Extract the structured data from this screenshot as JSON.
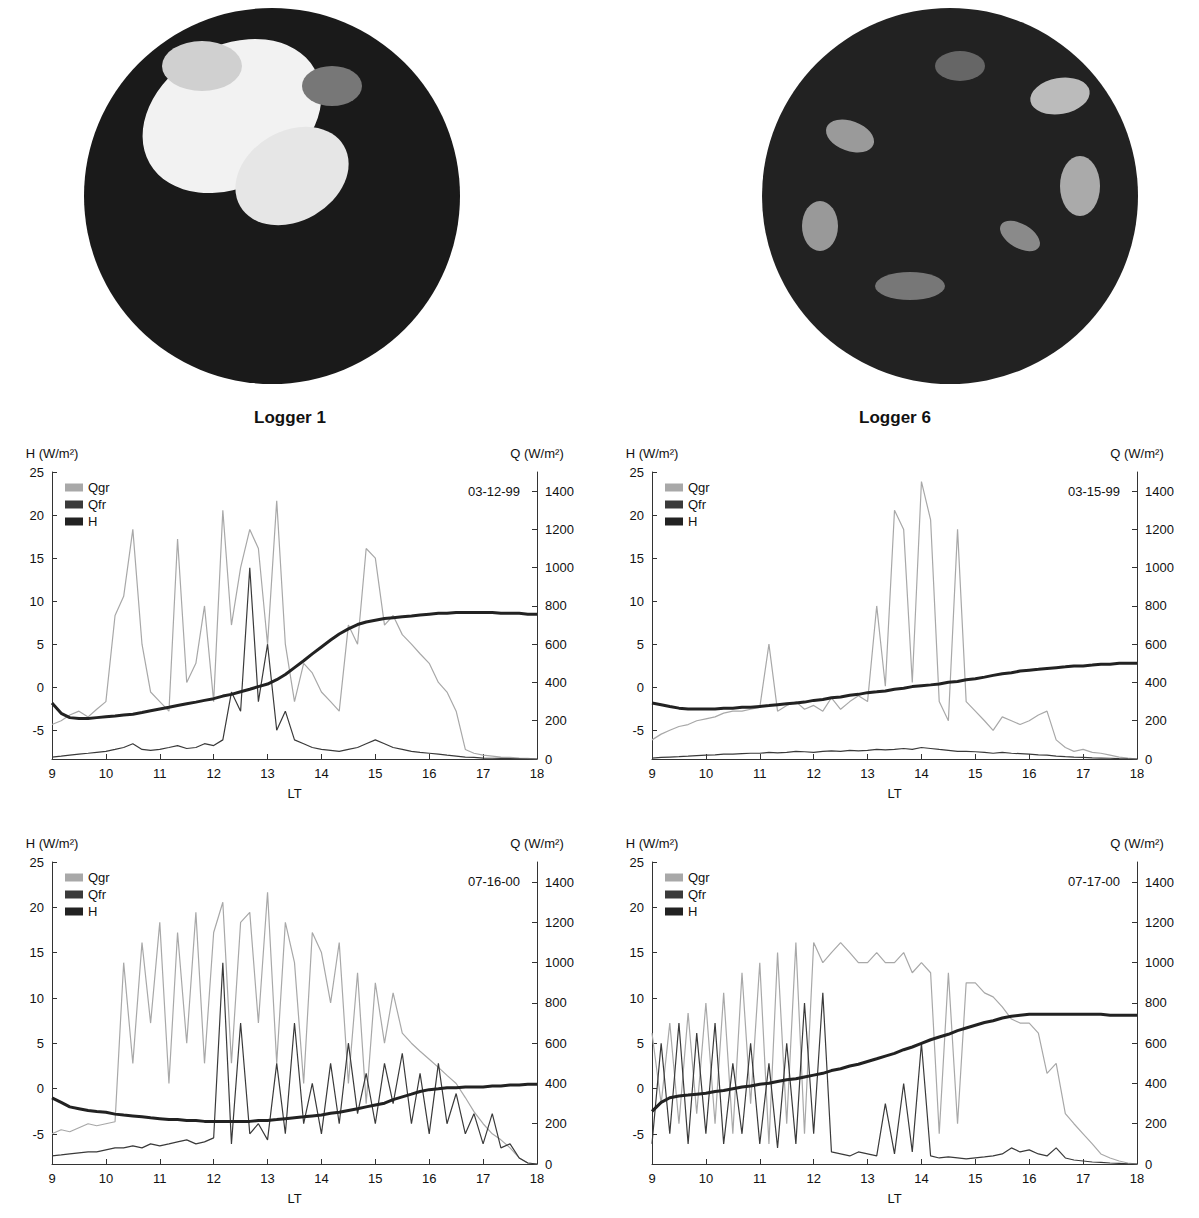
{
  "images": [
    {
      "caption": "Logger 1"
    },
    {
      "caption": "Logger 6"
    }
  ],
  "chart_data": [
    {
      "type": "line",
      "title": "03-12-99",
      "x_label": "LT",
      "y_label": "H (W/m²)",
      "y2_label": "Q (W/m²)",
      "legend": "upper left",
      "grid": false,
      "xlim": [
        9,
        18
      ],
      "xticks": [
        9,
        10,
        11,
        12,
        13,
        14,
        15,
        16,
        17,
        18
      ],
      "ylim": [
        -8.3,
        25
      ],
      "yticks": [
        -5,
        0,
        5,
        10,
        15,
        20,
        25
      ],
      "y2lim": [
        0,
        1500
      ],
      "y2ticks": [
        0,
        200,
        400,
        600,
        800,
        1000,
        1200,
        1400
      ],
      "x": [
        9,
        9.17,
        9.33,
        9.5,
        9.67,
        9.83,
        10,
        10.17,
        10.33,
        10.5,
        10.67,
        10.83,
        11,
        11.17,
        11.33,
        11.5,
        11.67,
        11.83,
        12,
        12.17,
        12.33,
        12.5,
        12.67,
        12.83,
        13,
        13.17,
        13.33,
        13.5,
        13.67,
        13.83,
        14,
        14.17,
        14.33,
        14.5,
        14.67,
        14.83,
        15,
        15.17,
        15.33,
        15.5,
        15.67,
        15.83,
        16,
        16.17,
        16.33,
        16.5,
        16.67,
        16.83,
        17,
        17.17,
        17.33,
        17.5,
        17.67,
        17.83,
        18
      ],
      "series": [
        {
          "name": "Qgr",
          "color": "#a8a8a8",
          "axis": "y2",
          "values": [
            180,
            200,
            230,
            250,
            220,
            260,
            300,
            750,
            850,
            1200,
            600,
            350,
            300,
            250,
            1150,
            400,
            500,
            800,
            300,
            1300,
            700,
            1000,
            1200,
            1100,
            600,
            1350,
            600,
            300,
            500,
            450,
            350,
            300,
            250,
            700,
            600,
            1100,
            1050,
            700,
            750,
            650,
            600,
            550,
            500,
            400,
            350,
            250,
            50,
            30,
            20,
            15,
            10,
            8,
            5,
            3,
            0
          ]
        },
        {
          "name": "Qfr",
          "color": "#3a3a3a",
          "axis": "y2",
          "values": [
            10,
            15,
            20,
            25,
            30,
            35,
            40,
            50,
            60,
            80,
            50,
            45,
            50,
            60,
            70,
            55,
            60,
            80,
            70,
            100,
            350,
            250,
            1000,
            300,
            600,
            150,
            250,
            100,
            80,
            60,
            50,
            45,
            40,
            50,
            60,
            80,
            100,
            80,
            60,
            50,
            40,
            35,
            30,
            25,
            20,
            15,
            10,
            8,
            5,
            4,
            3,
            2,
            1,
            0,
            0
          ]
        },
        {
          "name": "H",
          "color": "#222222",
          "axis": "y",
          "values": [
            -1.8,
            -3,
            -3.5,
            -3.6,
            -3.6,
            -3.5,
            -3.4,
            -3.3,
            -3.2,
            -3.1,
            -2.9,
            -2.7,
            -2.5,
            -2.3,
            -2.1,
            -1.9,
            -1.7,
            -1.5,
            -1.3,
            -1.0,
            -0.8,
            -0.5,
            -0.2,
            0.1,
            0.4,
            0.9,
            1.5,
            2.3,
            3.1,
            3.9,
            4.7,
            5.5,
            6.2,
            6.8,
            7.3,
            7.6,
            7.8,
            8.0,
            8.1,
            8.2,
            8.3,
            8.4,
            8.5,
            8.6,
            8.6,
            8.7,
            8.7,
            8.7,
            8.7,
            8.7,
            8.6,
            8.6,
            8.6,
            8.5,
            8.5
          ]
        }
      ]
    },
    {
      "type": "line",
      "title": "03-15-99",
      "x_label": "LT",
      "y_label": "H (W/m²)",
      "y2_label": "Q (W/m²)",
      "legend": "upper left",
      "grid": false,
      "xlim": [
        9,
        18
      ],
      "xticks": [
        9,
        10,
        11,
        12,
        13,
        14,
        15,
        16,
        17,
        18
      ],
      "ylim": [
        -8.3,
        25
      ],
      "yticks": [
        -5,
        0,
        5,
        10,
        15,
        20,
        25
      ],
      "y2lim": [
        0,
        1500
      ],
      "y2ticks": [
        0,
        200,
        400,
        600,
        800,
        1000,
        1200,
        1400
      ],
      "x": [
        9,
        9.17,
        9.33,
        9.5,
        9.67,
        9.83,
        10,
        10.17,
        10.33,
        10.5,
        10.67,
        10.83,
        11,
        11.17,
        11.33,
        11.5,
        11.67,
        11.83,
        12,
        12.17,
        12.33,
        12.5,
        12.67,
        12.83,
        13,
        13.17,
        13.33,
        13.5,
        13.67,
        13.83,
        14,
        14.17,
        14.33,
        14.5,
        14.67,
        14.83,
        15,
        15.17,
        15.33,
        15.5,
        15.67,
        15.83,
        16,
        16.17,
        16.33,
        16.5,
        16.67,
        16.83,
        17,
        17.17,
        17.33,
        17.5,
        17.67,
        17.83,
        18
      ],
      "series": [
        {
          "name": "Qgr",
          "color": "#a8a8a8",
          "axis": "y2",
          "values": [
            100,
            130,
            150,
            170,
            180,
            200,
            210,
            220,
            240,
            250,
            250,
            260,
            270,
            600,
            250,
            280,
            300,
            260,
            280,
            250,
            320,
            260,
            300,
            330,
            300,
            800,
            380,
            1300,
            1200,
            400,
            1450,
            1250,
            300,
            200,
            1200,
            300,
            250,
            200,
            150,
            220,
            200,
            180,
            200,
            230,
            250,
            100,
            60,
            40,
            50,
            35,
            30,
            20,
            10,
            5,
            0
          ]
        },
        {
          "name": "Qfr",
          "color": "#3a3a3a",
          "axis": "y2",
          "values": [
            5,
            8,
            10,
            12,
            15,
            18,
            20,
            22,
            25,
            25,
            28,
            30,
            30,
            35,
            32,
            35,
            40,
            38,
            35,
            40,
            42,
            40,
            45,
            42,
            45,
            50,
            48,
            50,
            55,
            50,
            60,
            55,
            50,
            45,
            40,
            40,
            38,
            35,
            30,
            35,
            30,
            28,
            25,
            22,
            20,
            15,
            12,
            10,
            8,
            6,
            5,
            4,
            2,
            1,
            0
          ]
        },
        {
          "name": "H",
          "color": "#222222",
          "axis": "y",
          "values": [
            -1.8,
            -2.0,
            -2.2,
            -2.4,
            -2.5,
            -2.5,
            -2.5,
            -2.5,
            -2.4,
            -2.4,
            -2.3,
            -2.3,
            -2.2,
            -2.1,
            -2.0,
            -1.9,
            -1.8,
            -1.7,
            -1.5,
            -1.4,
            -1.2,
            -1.1,
            -0.9,
            -0.8,
            -0.6,
            -0.5,
            -0.4,
            -0.2,
            -0.1,
            0.1,
            0.2,
            0.3,
            0.4,
            0.6,
            0.7,
            0.9,
            1.0,
            1.2,
            1.4,
            1.6,
            1.7,
            1.9,
            2.0,
            2.1,
            2.2,
            2.3,
            2.4,
            2.5,
            2.5,
            2.6,
            2.7,
            2.7,
            2.8,
            2.8,
            2.8
          ]
        }
      ]
    },
    {
      "type": "line",
      "title": "07-16-00",
      "x_label": "LT",
      "y_label": "H (W/m²)",
      "y2_label": "Q (W/m²)",
      "legend": "upper left",
      "grid": false,
      "xlim": [
        9,
        18
      ],
      "xticks": [
        9,
        10,
        11,
        12,
        13,
        14,
        15,
        16,
        17,
        18
      ],
      "ylim": [
        -8.3,
        25
      ],
      "yticks": [
        -5,
        0,
        5,
        10,
        15,
        20,
        25
      ],
      "y2lim": [
        0,
        1500
      ],
      "y2ticks": [
        0,
        200,
        400,
        600,
        800,
        1000,
        1200,
        1400
      ],
      "x": [
        9,
        9.17,
        9.33,
        9.5,
        9.67,
        9.83,
        10,
        10.17,
        10.33,
        10.5,
        10.67,
        10.83,
        11,
        11.17,
        11.33,
        11.5,
        11.67,
        11.83,
        12,
        12.17,
        12.33,
        12.5,
        12.67,
        12.83,
        13,
        13.17,
        13.33,
        13.5,
        13.67,
        13.83,
        14,
        14.17,
        14.33,
        14.5,
        14.67,
        14.83,
        15,
        15.17,
        15.33,
        15.5,
        15.67,
        15.83,
        16,
        16.17,
        16.33,
        16.5,
        16.67,
        16.83,
        17,
        17.17,
        17.33,
        17.5,
        17.67,
        17.83,
        18
      ],
      "series": [
        {
          "name": "Qgr",
          "color": "#a8a8a8",
          "axis": "y2",
          "values": [
            150,
            170,
            160,
            180,
            200,
            190,
            200,
            210,
            1000,
            500,
            1100,
            700,
            1200,
            400,
            1150,
            600,
            1250,
            500,
            1150,
            1300,
            500,
            1200,
            1250,
            700,
            1350,
            500,
            1200,
            1000,
            400,
            1150,
            1050,
            800,
            1100,
            400,
            950,
            300,
            900,
            600,
            850,
            650,
            600,
            560,
            520,
            480,
            440,
            400,
            330,
            260,
            200,
            150,
            120,
            80,
            30,
            5,
            0
          ]
        },
        {
          "name": "Qfr",
          "color": "#3a3a3a",
          "axis": "y2",
          "values": [
            40,
            45,
            50,
            55,
            60,
            60,
            70,
            80,
            80,
            90,
            80,
            100,
            90,
            100,
            110,
            120,
            100,
            110,
            130,
            1000,
            100,
            700,
            150,
            200,
            120,
            500,
            150,
            700,
            200,
            400,
            150,
            500,
            200,
            600,
            250,
            450,
            200,
            500,
            300,
            550,
            200,
            450,
            150,
            500,
            200,
            350,
            150,
            250,
            100,
            250,
            80,
            100,
            30,
            5,
            0
          ]
        },
        {
          "name": "H",
          "color": "#222222",
          "axis": "y",
          "values": [
            -1.0,
            -1.5,
            -2.0,
            -2.2,
            -2.4,
            -2.5,
            -2.6,
            -2.8,
            -2.9,
            -3.0,
            -3.1,
            -3.2,
            -3.3,
            -3.4,
            -3.4,
            -3.5,
            -3.5,
            -3.6,
            -3.6,
            -3.6,
            -3.6,
            -3.6,
            -3.6,
            -3.5,
            -3.5,
            -3.4,
            -3.3,
            -3.2,
            -3.1,
            -3.0,
            -2.9,
            -2.7,
            -2.6,
            -2.4,
            -2.2,
            -2.0,
            -1.8,
            -1.6,
            -1.2,
            -0.9,
            -0.6,
            -0.3,
            -0.1,
            0.0,
            0.1,
            0.1,
            0.2,
            0.2,
            0.2,
            0.3,
            0.3,
            0.4,
            0.4,
            0.5,
            0.5
          ]
        }
      ]
    },
    {
      "type": "line",
      "title": "07-17-00",
      "x_label": "LT",
      "y_label": "H (W/m²)",
      "y2_label": "Q (W/m²)",
      "legend": "upper left",
      "grid": false,
      "xlim": [
        9,
        18
      ],
      "xticks": [
        9,
        10,
        11,
        12,
        13,
        14,
        15,
        16,
        17,
        18
      ],
      "ylim": [
        -8.3,
        25
      ],
      "yticks": [
        -5,
        0,
        5,
        10,
        15,
        20,
        25
      ],
      "y2lim": [
        0,
        1500
      ],
      "y2ticks": [
        0,
        200,
        400,
        600,
        800,
        1000,
        1200,
        1400
      ],
      "x": [
        9,
        9.17,
        9.33,
        9.5,
        9.67,
        9.83,
        10,
        10.17,
        10.33,
        10.5,
        10.67,
        10.83,
        11,
        11.17,
        11.33,
        11.5,
        11.67,
        11.83,
        12,
        12.17,
        12.33,
        12.5,
        12.67,
        12.83,
        13,
        13.17,
        13.33,
        13.5,
        13.67,
        13.83,
        14,
        14.17,
        14.33,
        14.5,
        14.67,
        14.83,
        15,
        15.17,
        15.33,
        15.5,
        15.67,
        15.83,
        16,
        16.17,
        16.33,
        16.5,
        16.67,
        16.83,
        17,
        17.17,
        17.33,
        17.5,
        17.67,
        17.83,
        18
      ],
      "series": [
        {
          "name": "Qgr",
          "color": "#a8a8a8",
          "axis": "y2",
          "values": [
            650,
            300,
            700,
            200,
            750,
            250,
            800,
            200,
            850,
            150,
            950,
            300,
            1000,
            100,
            1050,
            200,
            1100,
            150,
            1100,
            1000,
            1050,
            1100,
            1050,
            1000,
            1000,
            1050,
            1000,
            1000,
            1050,
            950,
            1000,
            950,
            150,
            950,
            200,
            900,
            900,
            850,
            830,
            780,
            720,
            700,
            700,
            650,
            450,
            500,
            250,
            200,
            150,
            100,
            50,
            30,
            15,
            5,
            0
          ]
        },
        {
          "name": "Qfr",
          "color": "#3a3a3a",
          "axis": "y2",
          "values": [
            100,
            600,
            150,
            700,
            100,
            650,
            150,
            700,
            100,
            500,
            150,
            600,
            100,
            500,
            80,
            600,
            100,
            800,
            150,
            850,
            60,
            50,
            40,
            60,
            50,
            40,
            300,
            50,
            400,
            60,
            600,
            40,
            30,
            35,
            30,
            25,
            30,
            35,
            40,
            50,
            80,
            60,
            70,
            50,
            40,
            80,
            30,
            20,
            15,
            10,
            8,
            5,
            3,
            1,
            0
          ]
        },
        {
          "name": "H",
          "color": "#222222",
          "axis": "y",
          "values": [
            -2.5,
            -1.5,
            -1.0,
            -0.8,
            -0.7,
            -0.6,
            -0.5,
            -0.3,
            -0.2,
            0.0,
            0.2,
            0.3,
            0.5,
            0.6,
            0.8,
            1.0,
            1.1,
            1.3,
            1.5,
            1.7,
            2.0,
            2.2,
            2.5,
            2.7,
            3.0,
            3.3,
            3.6,
            3.9,
            4.3,
            4.6,
            5.0,
            5.4,
            5.7,
            6.0,
            6.4,
            6.7,
            7.0,
            7.3,
            7.5,
            7.8,
            8.0,
            8.1,
            8.2,
            8.2,
            8.2,
            8.2,
            8.2,
            8.2,
            8.2,
            8.2,
            8.2,
            8.1,
            8.1,
            8.1,
            8.1
          ]
        }
      ]
    }
  ]
}
